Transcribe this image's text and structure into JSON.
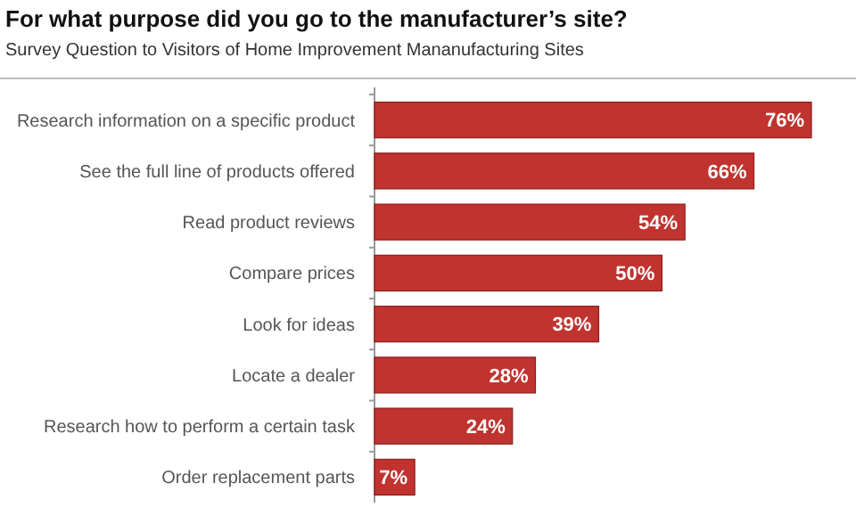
{
  "chart_data": {
    "type": "bar",
    "orientation": "horizontal",
    "title": "For what purpose did you go to the manufacturer’s site?",
    "subtitle": "Survey Question to Visitors of Home Improvement Mananufacturing Sites",
    "categories": [
      "Research information on a specific  product",
      "See the full line of products offered",
      "Read product reviews",
      "Compare prices",
      "Look for ideas",
      "Locate a dealer",
      "Research how to perform a certain task",
      "Order replacement parts"
    ],
    "values": [
      76,
      66,
      54,
      50,
      39,
      28,
      24,
      7
    ],
    "value_labels": [
      "76%",
      "66%",
      "54%",
      "50%",
      "39%",
      "28%",
      "24%",
      "7%"
    ],
    "color": "#c0332f"
  }
}
